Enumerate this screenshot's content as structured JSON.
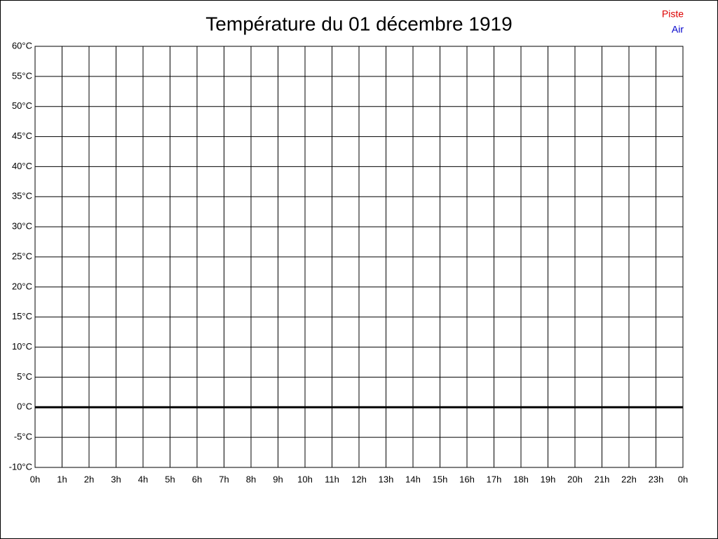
{
  "chart_data": {
    "type": "line",
    "title": "Température du 01 décembre 1919",
    "series": [
      {
        "name": "Piste",
        "color": "#dd0000",
        "values": []
      },
      {
        "name": "Air",
        "color": "#0000cc",
        "values": []
      }
    ],
    "x": [],
    "xlim": [
      0,
      24
    ],
    "xticks": [
      {
        "value": 0,
        "label": "0h"
      },
      {
        "value": 1,
        "label": "1h"
      },
      {
        "value": 2,
        "label": "2h"
      },
      {
        "value": 3,
        "label": "3h"
      },
      {
        "value": 4,
        "label": "4h"
      },
      {
        "value": 5,
        "label": "5h"
      },
      {
        "value": 6,
        "label": "6h"
      },
      {
        "value": 7,
        "label": "7h"
      },
      {
        "value": 8,
        "label": "8h"
      },
      {
        "value": 9,
        "label": "9h"
      },
      {
        "value": 10,
        "label": "10h"
      },
      {
        "value": 11,
        "label": "11h"
      },
      {
        "value": 12,
        "label": "12h"
      },
      {
        "value": 13,
        "label": "13h"
      },
      {
        "value": 14,
        "label": "14h"
      },
      {
        "value": 15,
        "label": "15h"
      },
      {
        "value": 16,
        "label": "16h"
      },
      {
        "value": 17,
        "label": "17h"
      },
      {
        "value": 18,
        "label": "18h"
      },
      {
        "value": 19,
        "label": "19h"
      },
      {
        "value": 20,
        "label": "20h"
      },
      {
        "value": 21,
        "label": "21h"
      },
      {
        "value": 22,
        "label": "22h"
      },
      {
        "value": 23,
        "label": "23h"
      },
      {
        "value": 24,
        "label": "0h"
      }
    ],
    "ylim": [
      -10,
      60
    ],
    "yticks": [
      {
        "value": -10,
        "label": "-10°C"
      },
      {
        "value": -5,
        "label": "-5°C"
      },
      {
        "value": 0,
        "label": "0°C"
      },
      {
        "value": 5,
        "label": "5°C"
      },
      {
        "value": 10,
        "label": "10°C"
      },
      {
        "value": 15,
        "label": "15°C"
      },
      {
        "value": 20,
        "label": "20°C"
      },
      {
        "value": 25,
        "label": "25°C"
      },
      {
        "value": 30,
        "label": "30°C"
      },
      {
        "value": 35,
        "label": "35°C"
      },
      {
        "value": 40,
        "label": "40°C"
      },
      {
        "value": 45,
        "label": "45°C"
      },
      {
        "value": 50,
        "label": "50°C"
      },
      {
        "value": 55,
        "label": "55°C"
      },
      {
        "value": 60,
        "label": "60°C"
      }
    ],
    "grid": true
  }
}
